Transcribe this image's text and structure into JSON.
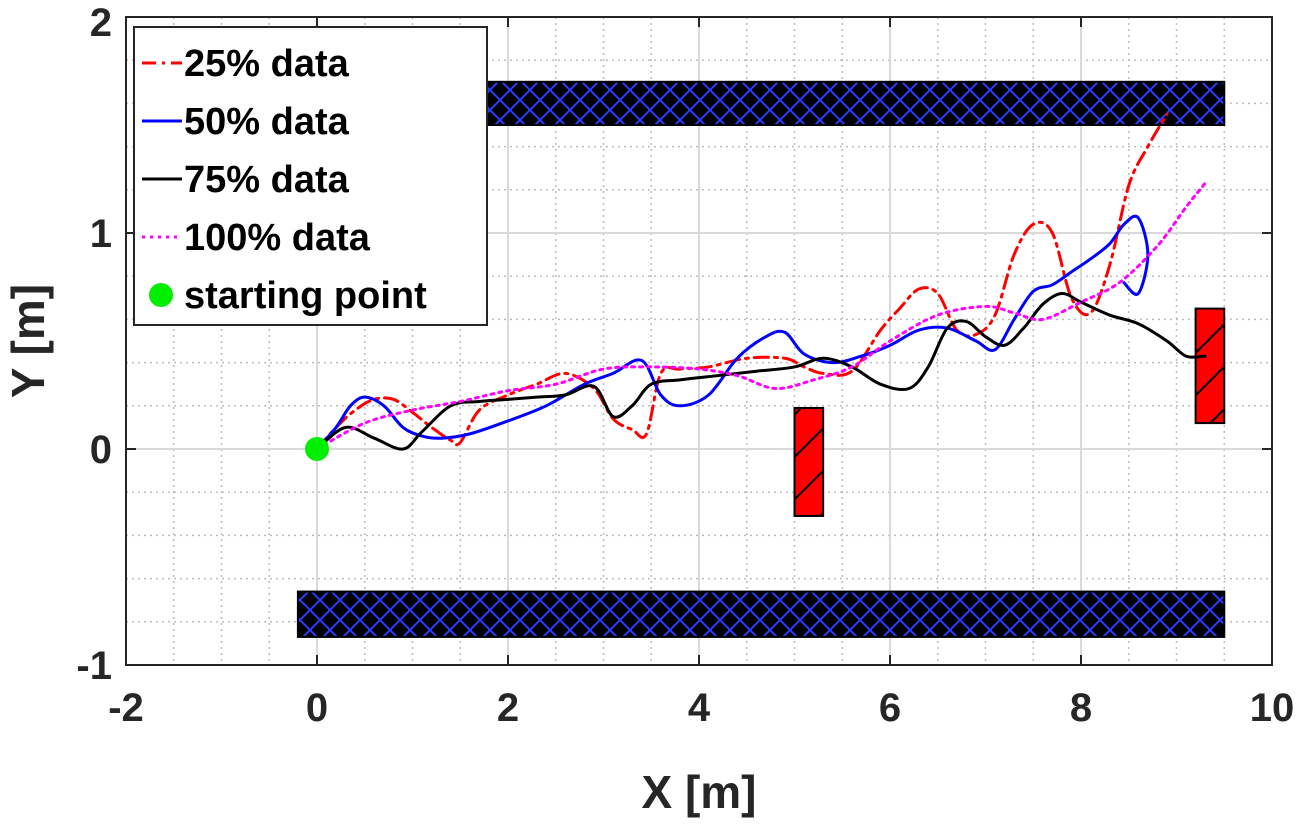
{
  "chart_data": {
    "type": "line",
    "xlabel": "X [m]",
    "ylabel": "Y [m]",
    "xlim": [
      -2,
      10
    ],
    "ylim": [
      -1,
      2
    ],
    "xticks": [
      -2,
      0,
      2,
      4,
      6,
      8,
      10
    ],
    "yticks": [
      -1,
      0,
      1,
      2
    ],
    "xtick_labels": [
      "-2",
      "0",
      "2",
      "4",
      "6",
      "8",
      "10"
    ],
    "ytick_labels": [
      "-1",
      "0",
      "1",
      "2"
    ],
    "grid": true,
    "minor_grid": true,
    "legend_position": "top-left",
    "series": [
      {
        "name": "25% data",
        "color": "#ff0000",
        "style": "dash-dot",
        "x": [
          0,
          0.2,
          0.4,
          0.6,
          0.8,
          1.0,
          1.2,
          1.4,
          1.5,
          1.7,
          2.0,
          2.3,
          2.6,
          2.9,
          3.1,
          3.3,
          3.45,
          3.6,
          3.8,
          4.1,
          4.5,
          4.9,
          5.1,
          5.3,
          5.6,
          5.9,
          6.1,
          6.3,
          6.5,
          6.7,
          6.9,
          7.1,
          7.3,
          7.5,
          7.7,
          7.9,
          8.1,
          8.3,
          8.5,
          8.7,
          8.9
        ],
        "y": [
          0,
          0.1,
          0.18,
          0.23,
          0.23,
          0.17,
          0.1,
          0.04,
          0.03,
          0.18,
          0.25,
          0.3,
          0.35,
          0.28,
          0.14,
          0.09,
          0.07,
          0.35,
          0.37,
          0.38,
          0.42,
          0.42,
          0.38,
          0.35,
          0.36,
          0.55,
          0.65,
          0.74,
          0.72,
          0.55,
          0.53,
          0.62,
          0.9,
          1.04,
          1.0,
          0.7,
          0.63,
          0.85,
          1.22,
          1.4,
          1.55
        ]
      },
      {
        "name": "50% data",
        "color": "#0000ff",
        "style": "solid",
        "x": [
          0,
          0.2,
          0.35,
          0.5,
          0.7,
          0.9,
          1.1,
          1.3,
          1.6,
          2.0,
          2.4,
          2.8,
          3.1,
          3.4,
          3.6,
          3.8,
          4.1,
          4.4,
          4.7,
          4.9,
          5.1,
          5.4,
          5.7,
          6.0,
          6.3,
          6.6,
          6.9,
          7.1,
          7.3,
          7.5,
          7.7,
          7.9,
          8.1,
          8.3,
          8.45,
          8.6,
          8.7,
          8.6,
          8.45
        ],
        "y": [
          0,
          0.1,
          0.2,
          0.24,
          0.2,
          0.1,
          0.06,
          0.05,
          0.07,
          0.13,
          0.2,
          0.3,
          0.35,
          0.41,
          0.25,
          0.2,
          0.25,
          0.42,
          0.52,
          0.54,
          0.44,
          0.4,
          0.43,
          0.48,
          0.55,
          0.56,
          0.5,
          0.46,
          0.6,
          0.73,
          0.76,
          0.82,
          0.88,
          0.95,
          1.04,
          1.07,
          0.9,
          0.72,
          0.77
        ]
      },
      {
        "name": "75% data",
        "color": "#000000",
        "style": "solid",
        "x": [
          0,
          0.3,
          0.6,
          0.9,
          1.1,
          1.4,
          1.7,
          2.0,
          2.3,
          2.6,
          2.9,
          3.1,
          3.3,
          3.5,
          3.8,
          4.2,
          4.6,
          5.0,
          5.3,
          5.6,
          5.9,
          6.2,
          6.4,
          6.6,
          6.8,
          7.0,
          7.2,
          7.4,
          7.6,
          7.8,
          8.0,
          8.3,
          8.6,
          8.9,
          9.1,
          9.3
        ],
        "y": [
          0,
          0.1,
          0.05,
          0.0,
          0.08,
          0.2,
          0.22,
          0.23,
          0.24,
          0.25,
          0.29,
          0.15,
          0.2,
          0.3,
          0.32,
          0.34,
          0.36,
          0.38,
          0.42,
          0.38,
          0.3,
          0.28,
          0.38,
          0.56,
          0.59,
          0.52,
          0.48,
          0.56,
          0.67,
          0.72,
          0.68,
          0.62,
          0.58,
          0.5,
          0.43,
          0.43
        ]
      },
      {
        "name": "100% data",
        "color": "#ff00ff",
        "style": "dotted",
        "x": [
          0,
          0.5,
          1.0,
          1.5,
          2.0,
          2.5,
          3.0,
          3.5,
          4.0,
          4.4,
          4.8,
          5.2,
          5.6,
          6.0,
          6.5,
          7.0,
          7.3,
          7.6,
          8.0,
          8.4,
          8.8,
          9.1,
          9.3
        ],
        "y": [
          0,
          0.12,
          0.18,
          0.22,
          0.27,
          0.3,
          0.37,
          0.38,
          0.37,
          0.34,
          0.28,
          0.32,
          0.38,
          0.5,
          0.62,
          0.66,
          0.63,
          0.6,
          0.68,
          0.77,
          0.94,
          1.12,
          1.23
        ]
      }
    ],
    "starting_point": {
      "name": "starting point",
      "x": 0,
      "y": 0,
      "color": "#00ee00"
    },
    "obstacles": [
      {
        "type": "wall",
        "x": [
          0.5,
          9.5
        ],
        "y": [
          1.5,
          1.7
        ],
        "fill": "#000000",
        "hatch": "#0000ff"
      },
      {
        "type": "wall",
        "x": [
          -0.2,
          9.5
        ],
        "y": [
          -0.87,
          -0.66
        ],
        "fill": "#000000",
        "hatch": "#0000ff"
      },
      {
        "type": "box",
        "x": [
          5.0,
          5.3
        ],
        "y": [
          -0.31,
          0.19
        ],
        "fill": "#ff0000",
        "hatch": "#000000"
      },
      {
        "type": "box",
        "x": [
          9.2,
          9.5
        ],
        "y": [
          0.12,
          0.65
        ],
        "fill": "#ff0000",
        "hatch": "#000000"
      }
    ]
  }
}
